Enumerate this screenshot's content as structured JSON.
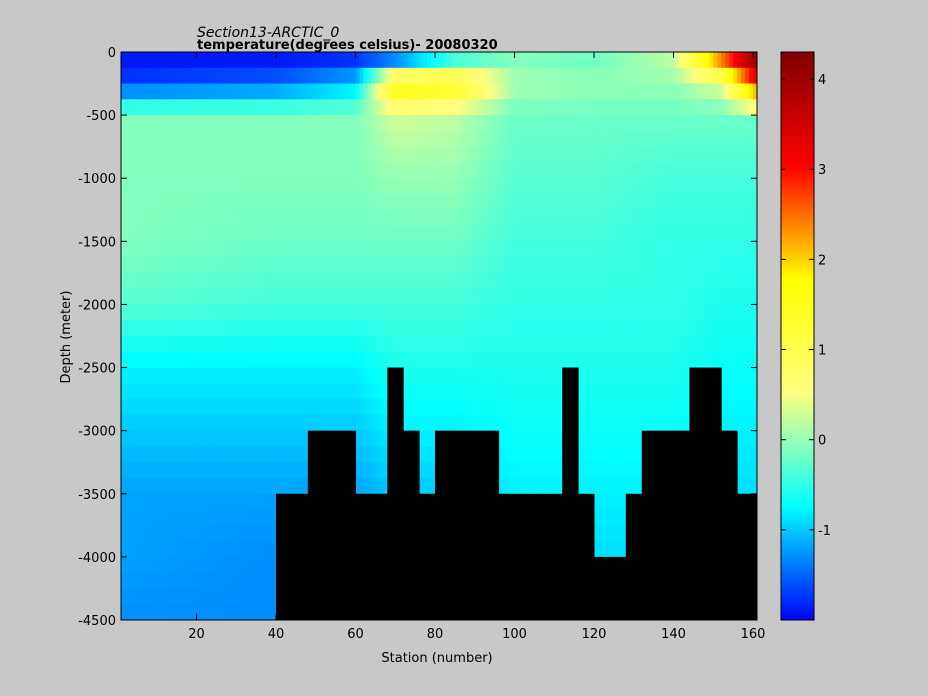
{
  "chart_data": {
    "type": "heatmap",
    "title": "Section13-ARCTIC_0",
    "subtitle": "temperature(degrees  celsius)- 20080320",
    "xlabel": "Station (number)",
    "ylabel": "Depth (meter)",
    "xlim": [
      1,
      161
    ],
    "ylim": [
      -4500,
      0
    ],
    "x_ticks": [
      20,
      40,
      60,
      80,
      100,
      120,
      140,
      160
    ],
    "y_ticks": [
      0,
      -500,
      -1000,
      -1500,
      -2000,
      -2500,
      -3000,
      -3500,
      -4000,
      -4500
    ],
    "colorbar": {
      "range": [
        -2,
        4.3
      ],
      "ticks": [
        -1,
        0,
        1,
        2,
        3,
        4
      ],
      "colormap": "jet",
      "colors": [
        "#0000ff",
        "#00ffff",
        "#ffff7f",
        "#ffff00",
        "#ff0000",
        "#800000"
      ]
    },
    "bottom_color": "#000000",
    "bottom_profile": {
      "stations": [
        40,
        44,
        48,
        52,
        56,
        60,
        64,
        68,
        72,
        76,
        80,
        84,
        88,
        92,
        96,
        100,
        104,
        108,
        112,
        116,
        120,
        124,
        128,
        132,
        136,
        140,
        144,
        148,
        152,
        156,
        160
      ],
      "depth": [
        -3500,
        -3500,
        -3000,
        -3000,
        -3000,
        -3500,
        -3500,
        -2500,
        -3000,
        -3500,
        -3000,
        -3000,
        -3000,
        -3000,
        -3500,
        -3500,
        -3500,
        -3500,
        -2500,
        -3500,
        -4000,
        -4000,
        -3500,
        -3000,
        -3000,
        -3000,
        -2500,
        -2500,
        -3000,
        -3500,
        -3500
      ]
    },
    "temperature_field": {
      "depths": [
        -50,
        -250,
        -500,
        -1000,
        -1500,
        -2000,
        -2500,
        -3000,
        -3500,
        -4000,
        -4500
      ],
      "profiles": [
        {
          "station": 1,
          "temps": [
            -1.9,
            -1.7,
            -0.1,
            -0.1,
            -0.1,
            -0.3,
            -0.8,
            -1.0,
            -1.2,
            -1.2,
            -1.3
          ]
        },
        {
          "station": 40,
          "temps": [
            -1.9,
            -1.5,
            -0.1,
            -0.1,
            -0.2,
            -0.4,
            -0.8,
            -1.0,
            -1.2,
            -1.3,
            -1.3
          ]
        },
        {
          "station": 60,
          "temps": [
            -1.8,
            -1.0,
            -0.1,
            -0.1,
            -0.2,
            -0.4,
            -0.8,
            -1.0,
            -1.2,
            -1.3,
            -1.3
          ]
        },
        {
          "station": 70,
          "temps": [
            -1.5,
            1.8,
            0.3,
            0.0,
            -0.2,
            -0.4,
            -0.6,
            -0.8,
            -1.0,
            -1.2,
            -1.3
          ]
        },
        {
          "station": 85,
          "temps": [
            -0.5,
            1.6,
            0.2,
            0.0,
            -0.2,
            -0.4,
            -0.6,
            -0.8,
            -1.0,
            -1.2,
            -1.3
          ]
        },
        {
          "station": 100,
          "temps": [
            -0.1,
            0.1,
            -0.2,
            -0.3,
            -0.4,
            -0.5,
            -0.6,
            -0.7,
            -0.8,
            -0.9,
            -1.0
          ]
        },
        {
          "station": 120,
          "temps": [
            -0.2,
            0.0,
            -0.2,
            -0.3,
            -0.4,
            -0.5,
            -0.6,
            -0.7,
            -0.8,
            -0.9,
            -1.0
          ]
        },
        {
          "station": 140,
          "temps": [
            0.2,
            0.0,
            -0.2,
            -0.4,
            -0.5,
            -0.5,
            -0.6,
            -0.7,
            -0.8,
            -0.9,
            -1.0
          ]
        },
        {
          "station": 152,
          "temps": [
            2.5,
            0.4,
            -0.2,
            -0.4,
            -0.5,
            -0.6,
            -0.7,
            -0.8,
            -0.9,
            -1.0,
            -1.0
          ]
        },
        {
          "station": 161,
          "temps": [
            4.2,
            3.0,
            -0.2,
            -0.4,
            -0.5,
            -0.6,
            -0.7,
            -0.8,
            -0.9,
            -1.0,
            -1.0
          ]
        }
      ]
    },
    "grid": false
  }
}
